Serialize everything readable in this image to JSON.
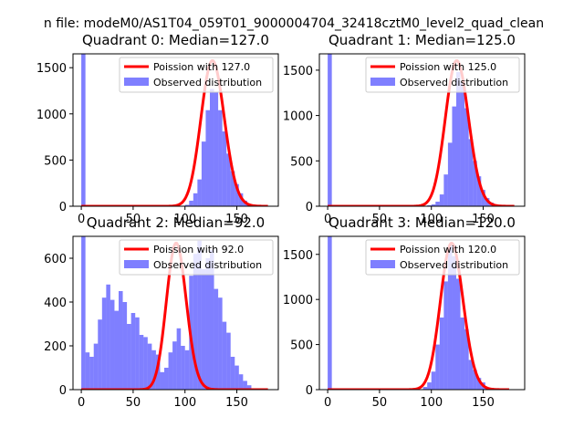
{
  "suptitle": "n file: modeM0/AS1T04_059T01_9000004704_32418cztM0_level2_quad_clean",
  "colors": {
    "hist": "#0000ff",
    "poisson": "#ff0000",
    "axes": "#000000",
    "background": "#ffffff"
  },
  "chart_data": [
    {
      "type": "bar",
      "title": "Quadrant 0: Median=127.0",
      "legend": {
        "placement": "top-right",
        "line_label": "Poission with 127.0",
        "hist_label": "Observed distribution"
      },
      "xlim": [
        -8,
        190
      ],
      "ylim": [
        0,
        1650
      ],
      "xticks": [
        0,
        50,
        100,
        150
      ],
      "yticks": [
        0,
        500,
        1000,
        1500
      ],
      "bin_width": 4,
      "hist_x": [
        0,
        96,
        100,
        104,
        108,
        112,
        116,
        120,
        124,
        128,
        132,
        136,
        140,
        144,
        148,
        152,
        156,
        160
      ],
      "hist_y": [
        1650,
        5,
        15,
        60,
        140,
        290,
        700,
        1040,
        1270,
        1230,
        1040,
        810,
        570,
        380,
        240,
        140,
        60,
        15
      ],
      "poisson_mean": 127.0,
      "poisson_scale": 4.0,
      "poisson_range": [
        0,
        180
      ]
    },
    {
      "type": "bar",
      "title": "Quadrant 1: Median=125.0",
      "legend": {
        "placement": "top-right",
        "line_label": "Poission with 125.0",
        "hist_label": "Observed distribution"
      },
      "xlim": [
        -8,
        190
      ],
      "ylim": [
        0,
        1680
      ],
      "xticks": [
        0,
        50,
        100,
        150
      ],
      "yticks": [
        0,
        500,
        1000,
        1500
      ],
      "bin_width": 4,
      "hist_x": [
        0,
        96,
        100,
        104,
        108,
        112,
        116,
        120,
        124,
        128,
        132,
        136,
        140,
        144,
        148,
        152,
        156,
        160
      ],
      "hist_y": [
        1680,
        10,
        20,
        50,
        130,
        350,
        700,
        1100,
        1480,
        1360,
        1080,
        740,
        500,
        330,
        180,
        90,
        40,
        10
      ],
      "poisson_mean": 125.0,
      "poisson_scale": 4.0,
      "poisson_range": [
        0,
        180
      ]
    },
    {
      "type": "bar",
      "title": "Quadrant 2: Median=92.0",
      "legend": {
        "placement": "top-right",
        "line_label": "Poission with 92.0",
        "hist_label": "Observed distribution"
      },
      "xlim": [
        -8,
        190
      ],
      "ylim": [
        0,
        700
      ],
      "xticks": [
        0,
        50,
        100,
        150
      ],
      "yticks": [
        0,
        200,
        400,
        600
      ],
      "bin_width": 4,
      "hist_x": [
        0,
        4,
        8,
        12,
        16,
        20,
        24,
        28,
        32,
        36,
        40,
        44,
        48,
        52,
        56,
        60,
        64,
        68,
        72,
        76,
        80,
        84,
        88,
        92,
        96,
        100,
        104,
        108,
        112,
        116,
        120,
        124,
        128,
        132,
        136,
        140,
        144,
        148,
        152,
        156,
        160
      ],
      "hist_y": [
        700,
        170,
        150,
        210,
        320,
        420,
        480,
        410,
        360,
        450,
        400,
        300,
        350,
        330,
        250,
        240,
        210,
        180,
        160,
        80,
        100,
        170,
        220,
        280,
        200,
        180,
        520,
        620,
        680,
        550,
        600,
        640,
        460,
        420,
        310,
        260,
        150,
        110,
        70,
        40,
        20
      ],
      "poisson_mean": 92.0,
      "poisson_scale": 1.72,
      "poisson_range": [
        0,
        180
      ]
    },
    {
      "type": "bar",
      "title": "Quadrant 3: Median=120.0",
      "legend": {
        "placement": "top-right",
        "line_label": "Poission with 120.0",
        "hist_label": "Observed distribution"
      },
      "xlim": [
        -8,
        190
      ],
      "ylim": [
        0,
        1700
      ],
      "xticks": [
        0,
        50,
        100,
        150
      ],
      "yticks": [
        0,
        500,
        1000,
        1500
      ],
      "bin_width": 4,
      "hist_x": [
        0,
        88,
        92,
        96,
        100,
        104,
        108,
        112,
        116,
        120,
        124,
        128,
        132,
        136,
        140,
        144,
        148,
        152
      ],
      "hist_y": [
        1700,
        5,
        30,
        80,
        200,
        500,
        800,
        1200,
        1600,
        1480,
        1230,
        800,
        670,
        330,
        220,
        130,
        80,
        20
      ],
      "poisson_mean": 120.0,
      "poisson_scale": 4.0,
      "poisson_range": [
        0,
        175
      ]
    }
  ]
}
